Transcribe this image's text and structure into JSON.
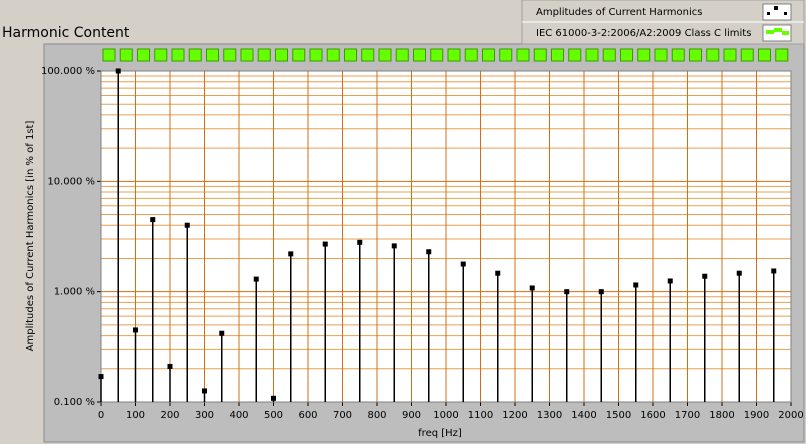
{
  "chart_data": {
    "type": "scatter",
    "title": "Harmonic Content",
    "xlabel": "freq [Hz]",
    "ylabel": "Amplitudes of Current Harmonics [in % of 1st]",
    "log_y": true,
    "grid": true,
    "legend": "top-right",
    "xlim": [
      0,
      2000
    ],
    "xticks": [
      0,
      100,
      200,
      300,
      400,
      500,
      600,
      700,
      800,
      900,
      1000,
      1100,
      1200,
      1300,
      1400,
      1500,
      1600,
      1700,
      1800,
      1900,
      2000
    ],
    "ylim": [
      0.1,
      100
    ],
    "yticks": [
      {
        "value": 0.1,
        "label": "0.100 %"
      },
      {
        "value": 1,
        "label": "1.000 %"
      },
      {
        "value": 10,
        "label": "10.000 %"
      },
      {
        "value": 100,
        "label": "100.000 %"
      }
    ],
    "series": [
      {
        "name": "Amplitudes of Current Harmonics",
        "color": "#000000",
        "x": [
          0,
          50,
          100,
          150,
          200,
          250,
          300,
          350,
          450,
          500,
          550,
          650,
          750,
          850,
          950,
          1050,
          1150,
          1250,
          1350,
          1450,
          1550,
          1650,
          1750,
          1850,
          1950
        ],
        "values": [
          0.17,
          100,
          0.45,
          4.5,
          0.21,
          4.0,
          0.126,
          0.42,
          1.3,
          0.108,
          2.2,
          2.7,
          2.8,
          2.6,
          2.3,
          1.78,
          1.47,
          1.08,
          1.0,
          1.0,
          1.15,
          1.25,
          1.38,
          1.47,
          1.54
        ]
      },
      {
        "name": "IEC 61000-3-2:2006/A2:2009 Class C limits",
        "color": "#66ff00"
      }
    ]
  }
}
